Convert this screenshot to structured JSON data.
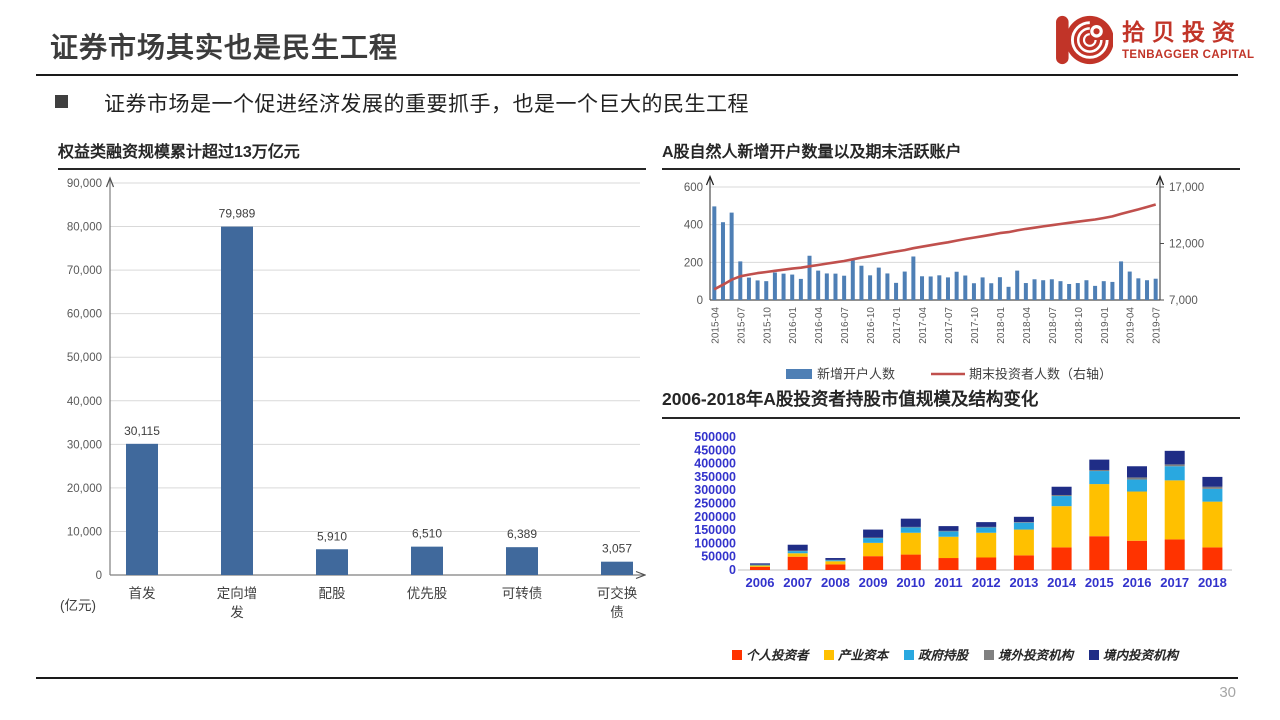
{
  "header": {
    "title": "证券市场其实也是民生工程",
    "bullet": "证券市场是一个促进经济发展的重要抓手，也是一个巨大的民生工程",
    "logo": {
      "cn": "拾贝投资",
      "en": "TENBAGGER CAPITAL",
      "color": "#c13428"
    }
  },
  "footer": {
    "page_number": "30"
  },
  "chart_data": [
    {
      "id": "equity-financing",
      "type": "bar",
      "title": "权益类融资规模累计超过13万亿元",
      "unit_label": "(亿元)",
      "categories": [
        "首发",
        "定向增发",
        "配股",
        "优先股",
        "可转债",
        "可交换债"
      ],
      "values": [
        30115,
        79989,
        5910,
        6510,
        6389,
        3057
      ],
      "data_labels": [
        "30,115",
        "79,989",
        "5,910",
        "6,510",
        "6,389",
        "3,057"
      ],
      "ylim": [
        0,
        90000
      ],
      "ytick_labels": [
        "0",
        "10,000",
        "20,000",
        "30,000",
        "40,000",
        "50,000",
        "60,000",
        "70,000",
        "80,000",
        "90,000"
      ],
      "bar_color": "#40699c",
      "grid": "horizontal"
    },
    {
      "id": "new-accounts",
      "type": "bar+line",
      "title": "A股自然人新增开户数量以及期末活跃账户",
      "bar_series": {
        "name": "新增开户人数",
        "color": "#4e7fb5",
        "values": [
          497,
          413,
          464,
          205,
          119,
          104,
          100,
          146,
          140,
          135,
          112,
          235,
          156,
          141,
          140,
          129,
          220,
          182,
          131,
          172,
          141,
          91,
          151,
          231,
          126,
          125,
          131,
          120,
          150,
          130,
          89,
          120,
          89,
          121,
          70,
          156,
          90,
          110,
          105,
          110,
          100,
          85,
          90,
          105,
          75,
          100,
          96,
          205,
          151,
          115,
          105,
          113
        ]
      },
      "line_series": {
        "name": "期末投资者人数（右轴）",
        "color": "#c0504d",
        "axis": "right",
        "values": [
          7950,
          8350,
          8800,
          9100,
          9250,
          9380,
          9480,
          9580,
          9680,
          9780,
          9860,
          9980,
          10100,
          10220,
          10340,
          10450,
          10600,
          10750,
          10880,
          11020,
          11160,
          11290,
          11420,
          11580,
          11720,
          11850,
          11980,
          12110,
          12260,
          12400,
          12520,
          12650,
          12780,
          12920,
          13010,
          13160,
          13290,
          13400,
          13510,
          13620,
          13730,
          13830,
          13930,
          14030,
          14120,
          14260,
          14400,
          14620,
          14820,
          15020,
          15230,
          15450
        ]
      },
      "left_axis": {
        "lim": [
          0,
          600
        ],
        "ticks": [
          0,
          200,
          400,
          600
        ],
        "labels": [
          "0",
          "200",
          "400",
          "600"
        ]
      },
      "right_axis": {
        "lim": [
          7000,
          17000
        ],
        "ticks": [
          7000,
          12000,
          17000
        ],
        "labels": [
          "7,000",
          "12,000",
          "17,000"
        ]
      },
      "xtick_labels": [
        "2015-04",
        "2015-07",
        "2015-10",
        "2016-01",
        "2016-04",
        "2016-07",
        "2016-10",
        "2017-01",
        "2017-04",
        "2017-07",
        "2017-10",
        "2018-01",
        "2018-04",
        "2018-07",
        "2018-10",
        "2019-01",
        "2019-04",
        "2019-07"
      ],
      "xtick_every": 3,
      "grid": "horizontal"
    },
    {
      "id": "holdings-structure",
      "type": "stacked-bar",
      "title": "2006-2018年A股投资者持股市值规模及结构变化",
      "categories": [
        "2006",
        "2007",
        "2008",
        "2009",
        "2010",
        "2011",
        "2012",
        "2013",
        "2014",
        "2015",
        "2016",
        "2017",
        "2018"
      ],
      "series": [
        {
          "name": "个人投资者",
          "color": "#ff3300",
          "values": [
            12000,
            50000,
            21000,
            52000,
            58000,
            45000,
            47000,
            55000,
            85000,
            127000,
            110000,
            115000,
            85000
          ]
        },
        {
          "name": "产业资本",
          "color": "#ffc000",
          "values": [
            5000,
            13000,
            12000,
            50000,
            82000,
            80000,
            93000,
            97000,
            155000,
            196000,
            185000,
            222000,
            172000
          ]
        },
        {
          "name": "政府持股",
          "color": "#29a8e0",
          "values": [
            2500,
            8000,
            4000,
            18000,
            20000,
            20000,
            20000,
            26000,
            38000,
            49000,
            45000,
            53000,
            48000
          ]
        },
        {
          "name": "境外投资机构",
          "color": "#808080",
          "values": [
            500,
            2000,
            1000,
            2000,
            2000,
            2000,
            2000,
            2000,
            4000,
            4000,
            8000,
            7000,
            8000
          ]
        },
        {
          "name": "境内投资机构",
          "color": "#1f2d86",
          "values": [
            5000,
            22000,
            7000,
            30000,
            31000,
            18000,
            18000,
            20000,
            31000,
            39000,
            42000,
            51000,
            37000
          ]
        }
      ],
      "ylim": [
        0,
        500000
      ],
      "ytick_labels": [
        "0",
        "50000",
        "100000",
        "150000",
        "200000",
        "250000",
        "300000",
        "350000",
        "400000",
        "450000",
        "500000"
      ],
      "axis_text_color": "#3333cc",
      "grid": "none",
      "legend_position": "bottom"
    }
  ]
}
